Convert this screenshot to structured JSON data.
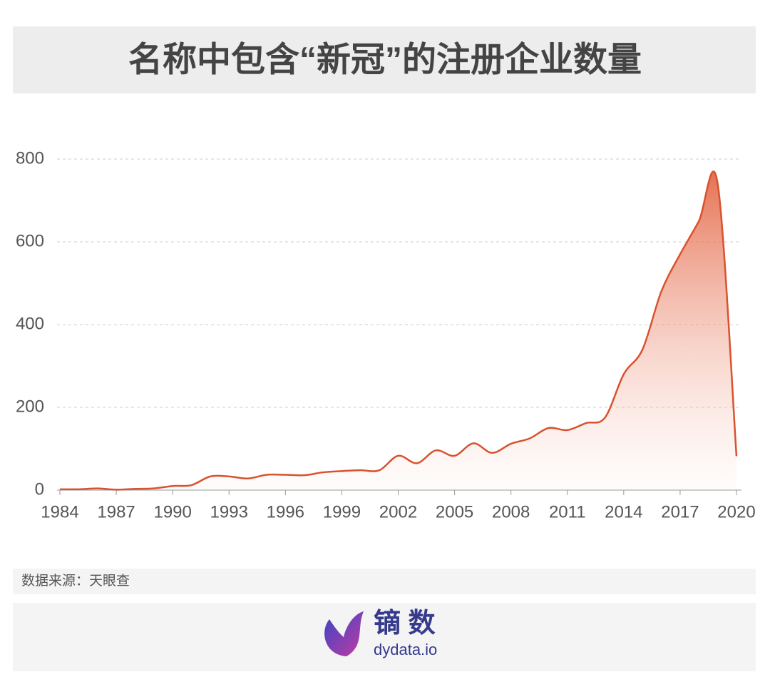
{
  "chart_data": {
    "type": "line",
    "title": "名称中包含“新冠”的注册企业数量",
    "x": [
      1984,
      1985,
      1986,
      1987,
      1988,
      1989,
      1990,
      1991,
      1992,
      1993,
      1994,
      1995,
      1996,
      1997,
      1998,
      1999,
      2000,
      2001,
      2002,
      2003,
      2004,
      2005,
      2006,
      2007,
      2008,
      2009,
      2010,
      2011,
      2012,
      2013,
      2014,
      2015,
      2016,
      2017,
      2018,
      2019,
      2020
    ],
    "series": [
      {
        "name": "注册企业数量",
        "color": "#d8522e",
        "values": [
          2,
          2,
          4,
          1,
          3,
          4,
          10,
          12,
          33,
          33,
          28,
          37,
          37,
          36,
          43,
          46,
          48,
          48,
          83,
          65,
          96,
          83,
          113,
          90,
          112,
          125,
          150,
          145,
          162,
          175,
          280,
          340,
          480,
          570,
          650,
          740,
          82
        ]
      }
    ],
    "xlim": [
      1984,
      2020
    ],
    "xticks": [
      1984,
      1987,
      1990,
      1993,
      1996,
      1999,
      2002,
      2005,
      2008,
      2011,
      2014,
      2017,
      2020
    ],
    "ylim": [
      0,
      800
    ],
    "yticks": [
      0,
      200,
      400,
      600,
      800
    ],
    "grid": true,
    "source": "数据来源：天眼查"
  },
  "footer": {
    "brand": "镝 数",
    "site": "dydata.io"
  }
}
